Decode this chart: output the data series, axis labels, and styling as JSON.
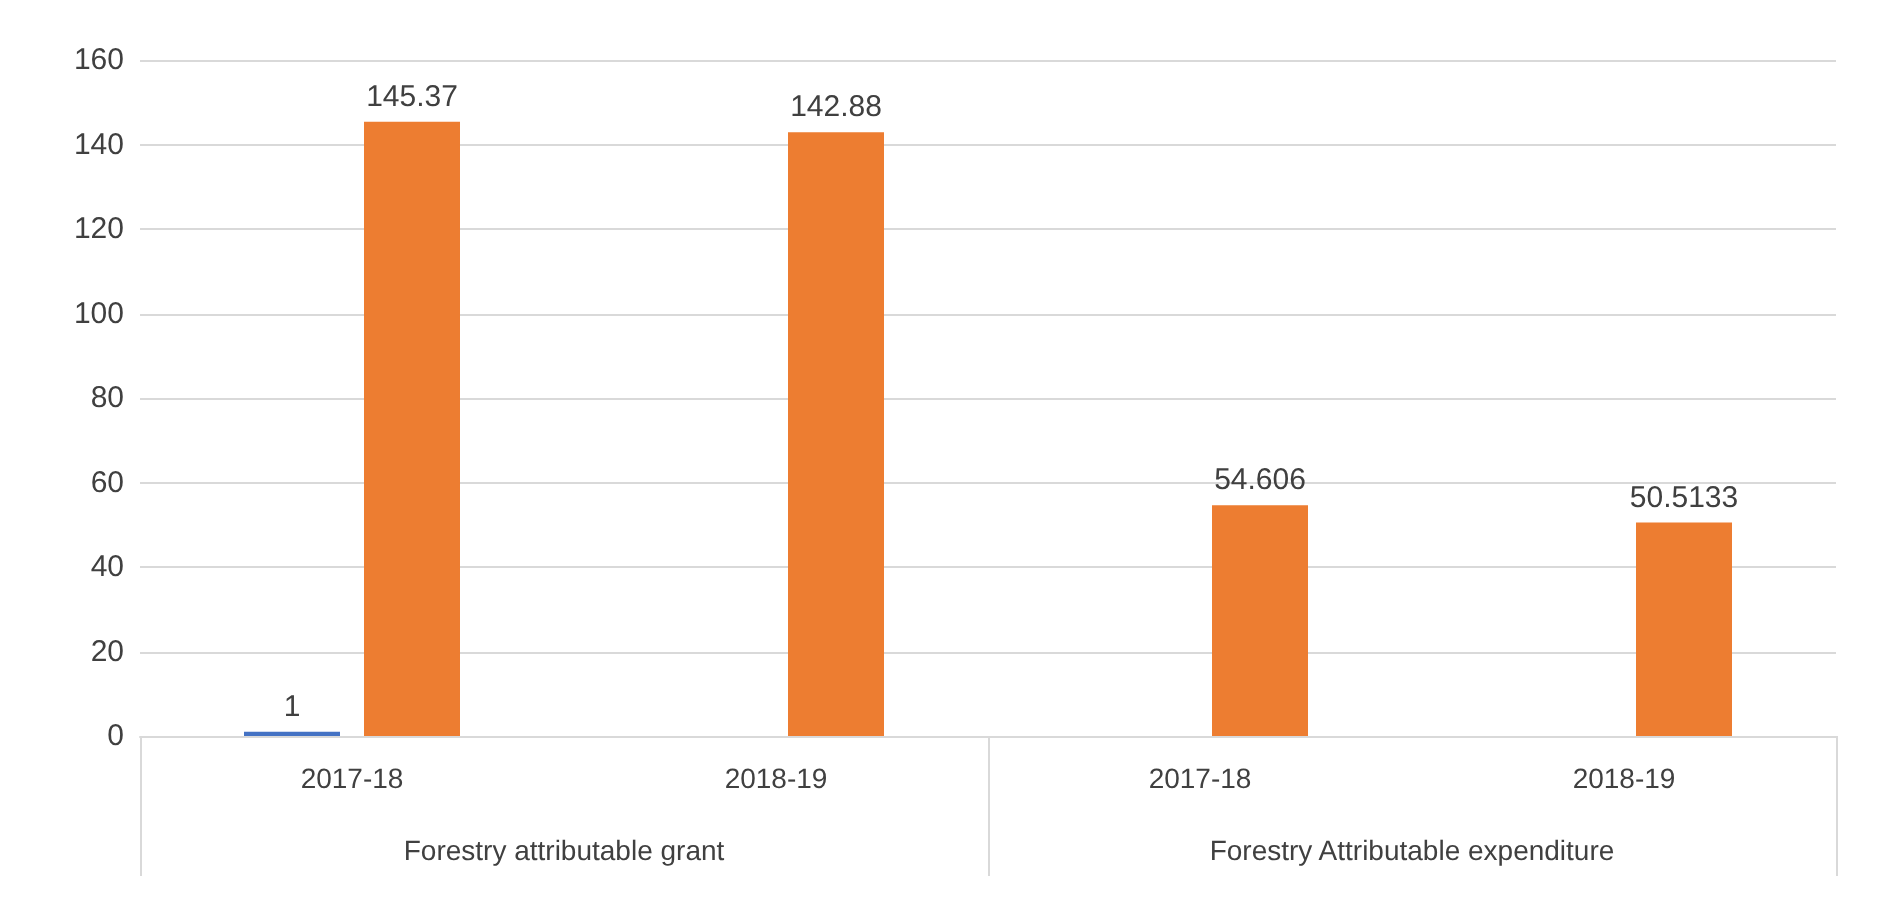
{
  "chart_data": {
    "type": "bar",
    "categories": [
      "2017-18",
      "2018-19",
      "2017-18",
      "2018-19"
    ],
    "series": [
      {
        "color": "#4472c4",
        "values": [
          1,
          null,
          null,
          null
        ]
      },
      {
        "color": "#ed7d31",
        "values": [
          145.37,
          142.88,
          54.606,
          50.5133
        ]
      }
    ],
    "ylim": [
      0,
      160
    ],
    "yticks": [
      0,
      20,
      40,
      60,
      80,
      100,
      120,
      140,
      160
    ],
    "grid": "y",
    "data_labels": true,
    "annotations": [
      "Forestry attributable grant",
      "Forestry Attributable expenditure"
    ]
  }
}
